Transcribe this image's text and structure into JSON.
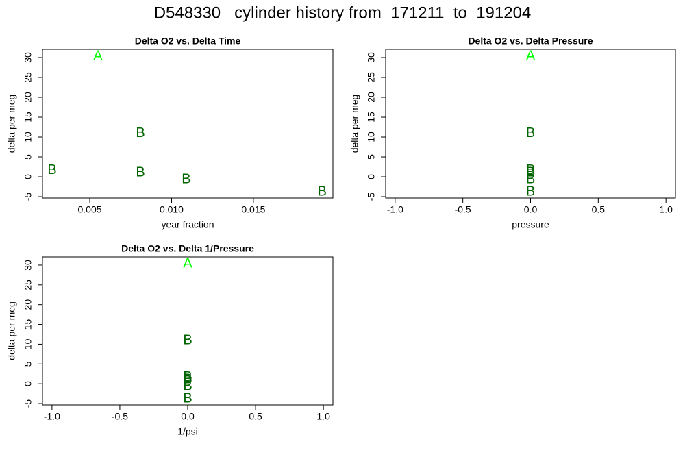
{
  "title": "D548330   cylinder history from  171211  to  191204",
  "chart_data": [
    {
      "type": "scatter",
      "title": "Delta O2 vs. Delta Time",
      "xlabel": "year fraction",
      "ylabel": "delta per meg",
      "x": [
        0.0055,
        0.0027,
        0.0081,
        0.0081,
        0.0109,
        0.0192
      ],
      "values": [
        30.3,
        1.6,
        10.9,
        1.0,
        -0.7,
        -3.8
      ],
      "markers": [
        "A",
        "B",
        "B",
        "B",
        "B",
        "B"
      ],
      "colors": [
        "#00ff00",
        "#006400",
        "#006400",
        "#006400",
        "#006400",
        "#006400"
      ],
      "xlim": [
        0.00211,
        0.01986
      ],
      "ylim": [
        -5.34,
        32.07
      ],
      "xticks": [
        {
          "value": 0.005,
          "label": "0.005"
        },
        {
          "value": 0.01,
          "label": "0.010"
        },
        {
          "value": 0.015,
          "label": "0.015"
        }
      ],
      "yticks": [
        -5,
        0,
        5,
        10,
        15,
        20,
        25,
        30
      ]
    },
    {
      "type": "scatter",
      "title": "Delta O2 vs. Delta Pressure",
      "xlabel": "pressure",
      "ylabel": "delta per meg",
      "x": [
        0,
        0,
        0,
        0,
        0,
        0
      ],
      "values": [
        30.3,
        10.9,
        1.6,
        1.0,
        -0.7,
        -3.8
      ],
      "markers": [
        "A",
        "B",
        "B",
        "B",
        "B",
        "B"
      ],
      "colors": [
        "#00ff00",
        "#006400",
        "#006400",
        "#006400",
        "#006400",
        "#006400"
      ],
      "xlim": [
        -1.07,
        1.07
      ],
      "ylim": [
        -5.34,
        32.07
      ],
      "xticks": [
        {
          "value": -1,
          "label": "-1.0"
        },
        {
          "value": -0.5,
          "label": "-0.5"
        },
        {
          "value": 0,
          "label": "0.0"
        },
        {
          "value": 0.5,
          "label": "0.5"
        },
        {
          "value": 1,
          "label": "1.0"
        }
      ],
      "yticks": [
        -5,
        0,
        5,
        10,
        15,
        20,
        25,
        30
      ]
    },
    {
      "type": "scatter",
      "title": "Delta O2 vs. Delta 1/Pressure",
      "xlabel": "1/psi",
      "ylabel": "delta per meg",
      "x": [
        0,
        0,
        0,
        0,
        0,
        0
      ],
      "values": [
        30.3,
        10.9,
        1.6,
        1.0,
        -0.7,
        -3.8
      ],
      "markers": [
        "A",
        "B",
        "B",
        "B",
        "B",
        "B"
      ],
      "colors": [
        "#00ff00",
        "#006400",
        "#006400",
        "#006400",
        "#006400",
        "#006400"
      ],
      "xlim": [
        -1.07,
        1.07
      ],
      "ylim": [
        -5.34,
        32.07
      ],
      "xticks": [
        {
          "value": -1,
          "label": "-1.0"
        },
        {
          "value": -0.5,
          "label": "-0.5"
        },
        {
          "value": 0,
          "label": "0.0"
        },
        {
          "value": 0.5,
          "label": "0.5"
        },
        {
          "value": 1,
          "label": "1.0"
        }
      ],
      "yticks": [
        -5,
        0,
        5,
        10,
        15,
        20,
        25,
        30
      ]
    }
  ]
}
